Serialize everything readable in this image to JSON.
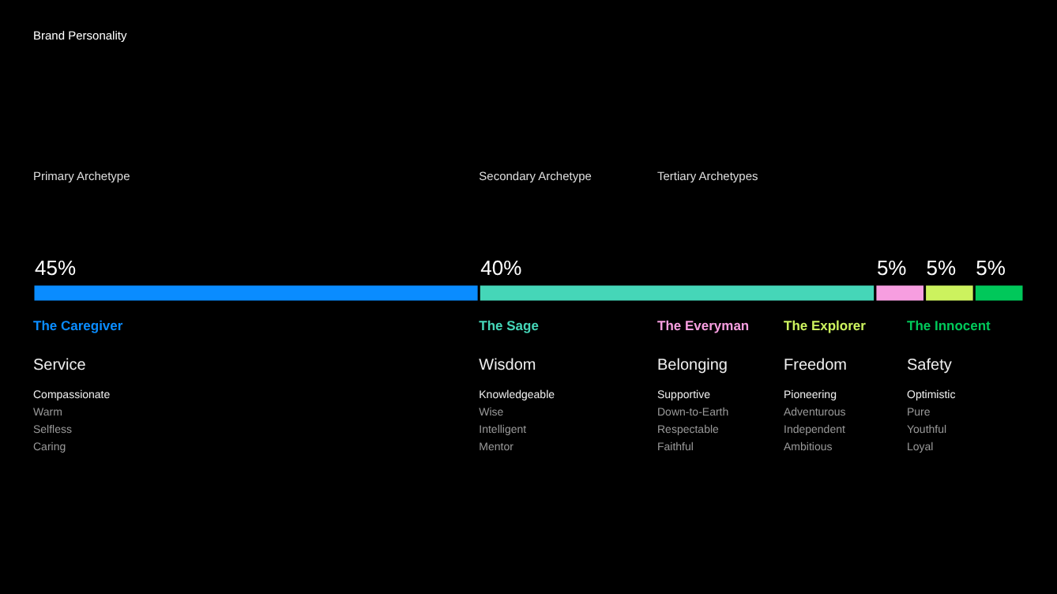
{
  "chart_data": {
    "type": "bar",
    "orientation": "horizontal",
    "stacked": true,
    "title": "Brand Personality",
    "categories": [
      null
    ],
    "xlim": [
      0,
      100
    ],
    "series": [
      {
        "name": "The Caregiver",
        "color": "#0a8cff",
        "values": [
          45
        ],
        "value_labels": [
          "45%"
        ]
      },
      {
        "name": "The Sage",
        "color": "#45d6b8",
        "values": [
          40
        ],
        "value_labels": [
          "40%"
        ]
      },
      {
        "name": "The Everyman",
        "color": "#f79ee0",
        "values": [
          5
        ],
        "value_labels": [
          "5%"
        ]
      },
      {
        "name": "The Explorer",
        "color": "#ccf25e",
        "values": [
          5
        ],
        "value_labels": [
          "5%"
        ]
      },
      {
        "name": "The Innocent",
        "color": "#00c85a",
        "values": [
          5
        ],
        "value_labels": [
          "5%"
        ]
      }
    ],
    "annotations": [
      "Primary Archetype",
      "Secondary Archetype",
      "Tertiary Archetypes",
      "Service",
      "Compassionate",
      "Warm",
      "Selfless",
      "Caring",
      "Wisdom",
      "Knowledgeable",
      "Wise",
      "Intelligent",
      "Mentor",
      "Belonging",
      "Supportive",
      "Down-to-Earth",
      "Respectable",
      "Faithful",
      "Freedom",
      "Pioneering",
      "Adventurous",
      "Independent",
      "Ambitious",
      "Safety",
      "Optimistic",
      "Pure",
      "Youthful",
      "Loyal"
    ]
  }
}
